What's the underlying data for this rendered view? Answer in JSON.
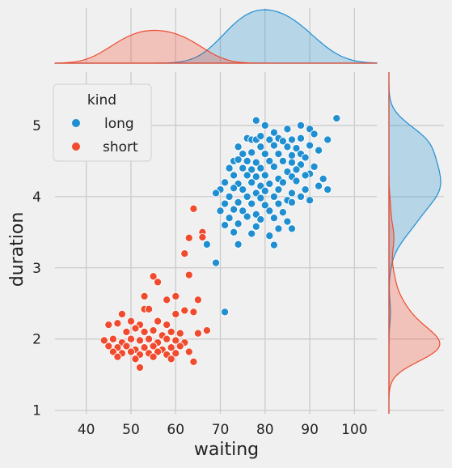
{
  "chart_data": {
    "type": "scatter",
    "xlabel": "waiting",
    "ylabel": "duration",
    "xlim": [
      33,
      105
    ],
    "ylim": [
      0.95,
      5.75
    ],
    "xticks": [
      40,
      50,
      60,
      70,
      80,
      90,
      100
    ],
    "yticks": [
      1,
      2,
      3,
      4,
      5
    ],
    "grid": true,
    "legend": {
      "title": "kind",
      "placement": "top-left"
    },
    "marginals": "kde",
    "series": [
      {
        "name": "long",
        "color": "#1f8fd2",
        "points": [
          [
            96,
            5.1
          ],
          [
            88,
            5.0
          ],
          [
            90,
            4.95
          ],
          [
            78,
            5.07
          ],
          [
            80,
            5.0
          ],
          [
            85,
            4.95
          ],
          [
            82,
            4.9
          ],
          [
            91,
            4.88
          ],
          [
            94,
            4.8
          ],
          [
            76,
            4.82
          ],
          [
            77,
            4.8
          ],
          [
            78,
            4.8
          ],
          [
            79,
            4.85
          ],
          [
            81,
            4.8
          ],
          [
            83,
            4.82
          ],
          [
            84,
            4.78
          ],
          [
            86,
            4.8
          ],
          [
            88,
            4.82
          ],
          [
            74,
            4.7
          ],
          [
            79,
            4.7
          ],
          [
            82,
            4.72
          ],
          [
            85,
            4.7
          ],
          [
            87,
            4.68
          ],
          [
            90,
            4.72
          ],
          [
            92,
            4.65
          ],
          [
            75,
            4.6
          ],
          [
            77,
            4.62
          ],
          [
            80,
            4.6
          ],
          [
            83,
            4.6
          ],
          [
            86,
            4.58
          ],
          [
            88,
            4.6
          ],
          [
            89,
            4.55
          ],
          [
            73,
            4.5
          ],
          [
            74,
            4.52
          ],
          [
            76,
            4.5
          ],
          [
            78,
            4.48
          ],
          [
            81,
            4.5
          ],
          [
            84,
            4.5
          ],
          [
            86,
            4.48
          ],
          [
            88,
            4.45
          ],
          [
            91,
            4.42
          ],
          [
            72,
            4.4
          ],
          [
            75,
            4.4
          ],
          [
            77,
            4.38
          ],
          [
            79,
            4.4
          ],
          [
            82,
            4.42
          ],
          [
            85,
            4.35
          ],
          [
            87,
            4.38
          ],
          [
            90,
            4.32
          ],
          [
            73,
            4.3
          ],
          [
            76,
            4.3
          ],
          [
            78,
            4.28
          ],
          [
            80,
            4.3
          ],
          [
            83,
            4.25
          ],
          [
            86,
            4.28
          ],
          [
            89,
            4.3
          ],
          [
            93,
            4.25
          ],
          [
            71,
            4.2
          ],
          [
            74,
            4.18
          ],
          [
            77,
            4.2
          ],
          [
            79,
            4.15
          ],
          [
            81,
            4.18
          ],
          [
            84,
            4.2
          ],
          [
            87,
            4.22
          ],
          [
            92,
            4.15
          ],
          [
            70,
            4.1
          ],
          [
            73,
            4.12
          ],
          [
            75,
            4.1
          ],
          [
            78,
            4.05
          ],
          [
            80,
            4.08
          ],
          [
            83,
            4.1
          ],
          [
            86,
            4.05
          ],
          [
            89,
            4.1
          ],
          [
            69,
            4.05
          ],
          [
            72,
            4.0
          ],
          [
            76,
            4.0
          ],
          [
            79,
            3.98
          ],
          [
            82,
            4.0
          ],
          [
            85,
            3.95
          ],
          [
            88,
            4.0
          ],
          [
            94,
            4.1
          ],
          [
            71,
            3.9
          ],
          [
            74,
            3.92
          ],
          [
            77,
            3.9
          ],
          [
            80,
            3.88
          ],
          [
            83,
            3.9
          ],
          [
            86,
            3.92
          ],
          [
            90,
            3.95
          ],
          [
            70,
            3.8
          ],
          [
            73,
            3.82
          ],
          [
            75,
            3.8
          ],
          [
            78,
            3.75
          ],
          [
            81,
            3.8
          ],
          [
            84,
            3.78
          ],
          [
            72,
            3.7
          ],
          [
            76,
            3.72
          ],
          [
            79,
            3.68
          ],
          [
            82,
            3.7
          ],
          [
            85,
            3.65
          ],
          [
            71,
            3.6
          ],
          [
            74,
            3.62
          ],
          [
            78,
            3.58
          ],
          [
            83,
            3.55
          ],
          [
            73,
            3.5
          ],
          [
            77,
            3.48
          ],
          [
            81,
            3.45
          ],
          [
            86,
            3.55
          ],
          [
            67,
            3.33
          ],
          [
            74,
            3.33
          ],
          [
            82,
            3.32
          ],
          [
            69,
            3.07
          ],
          [
            71,
            2.38
          ]
        ]
      },
      {
        "name": "short",
        "color": "#f04b2e",
        "points": [
          [
            64,
            3.83
          ],
          [
            66,
            3.5
          ],
          [
            63,
            3.42
          ],
          [
            66,
            3.43
          ],
          [
            62,
            3.2
          ],
          [
            55,
            2.88
          ],
          [
            56,
            2.8
          ],
          [
            63,
            2.9
          ],
          [
            53,
            2.6
          ],
          [
            60,
            2.6
          ],
          [
            58,
            2.55
          ],
          [
            65,
            2.55
          ],
          [
            48,
            2.35
          ],
          [
            53,
            2.42
          ],
          [
            54,
            2.42
          ],
          [
            62,
            2.4
          ],
          [
            64,
            2.38
          ],
          [
            60,
            2.35
          ],
          [
            45,
            2.2
          ],
          [
            47,
            2.22
          ],
          [
            50,
            2.25
          ],
          [
            52,
            2.2
          ],
          [
            56,
            2.25
          ],
          [
            58,
            2.2
          ],
          [
            49,
            2.1
          ],
          [
            51,
            2.15
          ],
          [
            53,
            2.1
          ],
          [
            55,
            2.12
          ],
          [
            57,
            2.05
          ],
          [
            59,
            2.1
          ],
          [
            61,
            2.08
          ],
          [
            65,
            2.08
          ],
          [
            67,
            2.12
          ],
          [
            44,
            1.98
          ],
          [
            46,
            2.0
          ],
          [
            48,
            1.95
          ],
          [
            50,
            2.0
          ],
          [
            52,
            1.98
          ],
          [
            54,
            2.0
          ],
          [
            56,
            1.95
          ],
          [
            58,
            2.0
          ],
          [
            60,
            1.98
          ],
          [
            62,
            1.95
          ],
          [
            45,
            1.9
          ],
          [
            47,
            1.88
          ],
          [
            49,
            1.9
          ],
          [
            51,
            1.85
          ],
          [
            53,
            1.88
          ],
          [
            55,
            1.9
          ],
          [
            57,
            1.85
          ],
          [
            59,
            1.88
          ],
          [
            61,
            1.9
          ],
          [
            46,
            1.82
          ],
          [
            48,
            1.8
          ],
          [
            50,
            1.82
          ],
          [
            52,
            1.78
          ],
          [
            54,
            1.8
          ],
          [
            56,
            1.82
          ],
          [
            58,
            1.78
          ],
          [
            60,
            1.8
          ],
          [
            63,
            1.82
          ],
          [
            47,
            1.75
          ],
          [
            51,
            1.72
          ],
          [
            55,
            1.75
          ],
          [
            59,
            1.72
          ],
          [
            64,
            1.68
          ],
          [
            52,
            1.6
          ]
        ]
      }
    ]
  }
}
